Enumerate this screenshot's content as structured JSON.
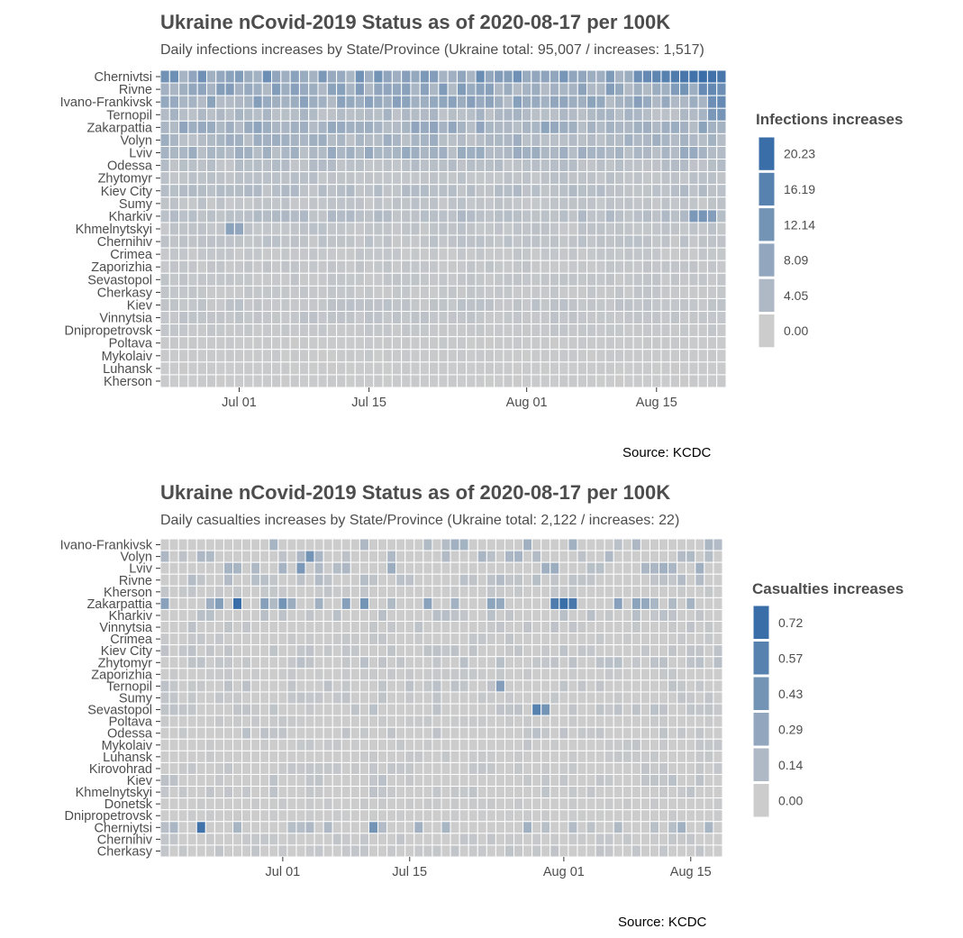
{
  "chart_data": [
    {
      "type": "heatmap",
      "title": "Ukraine nCovid-2019 Status as of 2020-08-17 per 100K",
      "subtitle": "Daily infections increases by State/Province (Ukraine total: 95,007 / increases: 1,517)",
      "caption": "Source: KCDC",
      "legend_title": "Infections increases",
      "legend_labels": [
        "20.23",
        "16.19",
        "12.14",
        "8.09",
        "4.05",
        "0.00"
      ],
      "x_ticks": [
        "Jul 01",
        "Jul 15",
        "Aug 01",
        "Aug 15"
      ],
      "x_tick_days": [
        8,
        22,
        39,
        53
      ],
      "n_days": 61,
      "color_low": "#cccccc",
      "color_high": "#3a6ea8",
      "rows": [
        "Chernivtsi",
        "Rivne",
        "Ivano-Frankivsk",
        "Ternopil",
        "Zakarpattia",
        "Volyn",
        "Lviv",
        "Odessa",
        "Zhytomyr",
        "Kiev City",
        "Sumy",
        "Kharkiv",
        "Khmelnytskyi",
        "Chernihiv",
        "Crimea",
        "Zaporizhia",
        "Sevastopol",
        "Cherkasy",
        "Kiev",
        "Vinnytsia",
        "Dnipropetrovsk",
        "Poltava",
        "Mykolaiv",
        "Luhansk",
        "Kherson"
      ],
      "row_levels": [
        0.45,
        0.35,
        0.33,
        0.18,
        0.3,
        0.22,
        0.25,
        0.12,
        0.1,
        0.14,
        0.08,
        0.14,
        0.08,
        0.08,
        0.05,
        0.06,
        0.06,
        0.05,
        0.08,
        0.07,
        0.05,
        0.03,
        0.03,
        0.02,
        0.02
      ],
      "highlights": [
        [
          0,
          55,
          0.85
        ],
        [
          0,
          56,
          0.9
        ],
        [
          0,
          57,
          0.95
        ],
        [
          0,
          58,
          1.0
        ],
        [
          0,
          59,
          0.95
        ],
        [
          0,
          60,
          0.9
        ],
        [
          0,
          53,
          0.75
        ],
        [
          0,
          54,
          0.8
        ],
        [
          0,
          52,
          0.7
        ],
        [
          0,
          51,
          0.65
        ],
        [
          1,
          58,
          0.7
        ],
        [
          1,
          59,
          0.72
        ],
        [
          1,
          60,
          0.65
        ],
        [
          1,
          56,
          0.6
        ],
        [
          2,
          59,
          0.65
        ],
        [
          2,
          60,
          0.7
        ],
        [
          3,
          59,
          0.55
        ],
        [
          3,
          60,
          0.58
        ],
        [
          11,
          57,
          0.55
        ],
        [
          11,
          58,
          0.58
        ],
        [
          11,
          59,
          0.5
        ],
        [
          12,
          7,
          0.45
        ],
        [
          12,
          8,
          0.4
        ]
      ]
    },
    {
      "type": "heatmap",
      "title": "Ukraine nCovid-2019 Status as of 2020-08-17 per 100K",
      "subtitle": "Daily casualties increases by State/Province (Ukraine total: 2,122 / increases: 22)",
      "caption": "Source: KCDC",
      "legend_title": "Casualties increases",
      "legend_labels": [
        "0.72",
        "0.57",
        "0.43",
        "0.29",
        "0.14",
        "0.00"
      ],
      "x_ticks": [
        "Jul 01",
        "Jul 15",
        "Aug 01",
        "Aug 15"
      ],
      "x_tick_days": [
        13,
        27,
        44,
        58
      ],
      "n_days": 62,
      "color_low": "#cccccc",
      "color_high": "#3a6ea8",
      "rows": [
        "Ivano-Frankivsk",
        "Volyn",
        "Lviv",
        "Rivne",
        "Kherson",
        "Zakarpattia",
        "Kharkiv",
        "Vinnytsia",
        "Crimea",
        "Kiev City",
        "Zhytomyr",
        "Zaporizhia",
        "Ternopil",
        "Sumy",
        "Sevastopol",
        "Poltava",
        "Odessa",
        "Mykolaiv",
        "Luhansk",
        "Kirovohrad",
        "Kiev",
        "Khmelnytskyi",
        "Donetsk",
        "Dnipropetrovsk",
        "Cherniytsi",
        "Chernihiv",
        "Cherkasy"
      ],
      "row_levels": [
        0.2,
        0.18,
        0.22,
        0.12,
        0.05,
        0.35,
        0.1,
        0.08,
        0.05,
        0.08,
        0.1,
        0.04,
        0.08,
        0.06,
        0.08,
        0.04,
        0.08,
        0.05,
        0.04,
        0.05,
        0.08,
        0.07,
        0.03,
        0.02,
        0.2,
        0.05,
        0.06
      ],
      "highlights": [
        [
          5,
          8,
          1.0
        ],
        [
          5,
          43,
          0.85
        ],
        [
          5,
          44,
          1.0
        ],
        [
          5,
          45,
          0.9
        ],
        [
          5,
          13,
          0.6
        ],
        [
          5,
          22,
          0.6
        ],
        [
          24,
          4,
          0.95
        ],
        [
          24,
          23,
          0.6
        ],
        [
          14,
          41,
          0.8
        ],
        [
          14,
          42,
          0.6
        ],
        [
          1,
          16,
          0.6
        ],
        [
          2,
          15,
          0.55
        ],
        [
          12,
          37,
          0.5
        ]
      ]
    }
  ]
}
